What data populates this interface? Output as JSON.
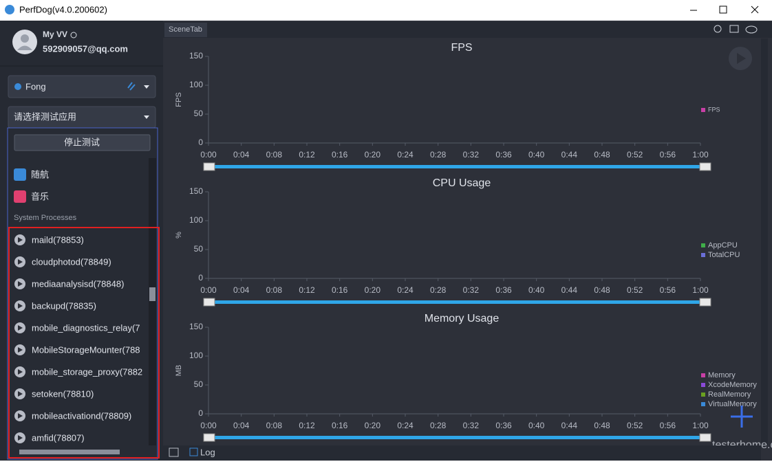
{
  "window": {
    "title": "PerfDog(v4.0.200602)"
  },
  "user": {
    "name": "My VV",
    "email": "592909057@qq.com"
  },
  "device": {
    "name": "Fong"
  },
  "app_select": {
    "placeholder": "请选择测试应用",
    "stop_button": "停止测试"
  },
  "apps": [
    "随航",
    "音乐"
  ],
  "section_label": "System Processes",
  "processes": [
    "maild(78853)",
    "cloudphotod(78849)",
    "mediaanalysisd(78848)",
    "backupd(78835)",
    "mobile_diagnostics_relay(7",
    "MobileStorageMounter(788",
    "mobile_storage_proxy(7882",
    "setoken(78810)",
    "mobileactivationd(78809)",
    "amfid(78807)"
  ],
  "tab": "SceneTab",
  "charts": [
    {
      "title": "FPS",
      "ylabel": "FPS",
      "ylim": [
        0,
        150
      ],
      "yticks": [
        0,
        50,
        100,
        150
      ],
      "xticks": [
        "0:00",
        "0:04",
        "0:08",
        "0:12",
        "0:16",
        "0:20",
        "0:24",
        "0:28",
        "0:32",
        "0:36",
        "0:40",
        "0:44",
        "0:48",
        "0:52",
        "0:56",
        "1:00"
      ],
      "legend": [
        {
          "name": "FPS",
          "color": "#c83fa6"
        }
      ]
    },
    {
      "title": "CPU Usage",
      "ylabel": "%",
      "ylim": [
        0,
        150
      ],
      "yticks": [
        0,
        50,
        100,
        150
      ],
      "xticks": [
        "0:00",
        "0:04",
        "0:08",
        "0:12",
        "0:16",
        "0:20",
        "0:24",
        "0:28",
        "0:32",
        "0:36",
        "0:40",
        "0:44",
        "0:48",
        "0:52",
        "0:56",
        "1:00"
      ],
      "legend": [
        {
          "name": "AppCPU",
          "color": "#3fae49"
        },
        {
          "name": "TotalCPU",
          "color": "#6a6fd8"
        }
      ]
    },
    {
      "title": "Memory Usage",
      "ylabel": "MB",
      "ylim": [
        0,
        150
      ],
      "yticks": [
        0,
        50,
        100,
        150
      ],
      "xticks": [
        "0:00",
        "0:04",
        "0:08",
        "0:12",
        "0:16",
        "0:20",
        "0:24",
        "0:28",
        "0:32",
        "0:36",
        "0:40",
        "0:44",
        "0:48",
        "0:52",
        "0:56",
        "1:00"
      ],
      "legend": [
        {
          "name": "Memory",
          "color": "#c83fa6"
        },
        {
          "name": "XcodeMemory",
          "color": "#8a4ad8"
        },
        {
          "name": "RealMemory",
          "color": "#6aa020"
        },
        {
          "name": "VirtualMemory",
          "color": "#3a8ad8"
        }
      ]
    }
  ],
  "log_label": "Log",
  "watermark": "testerhome.com"
}
